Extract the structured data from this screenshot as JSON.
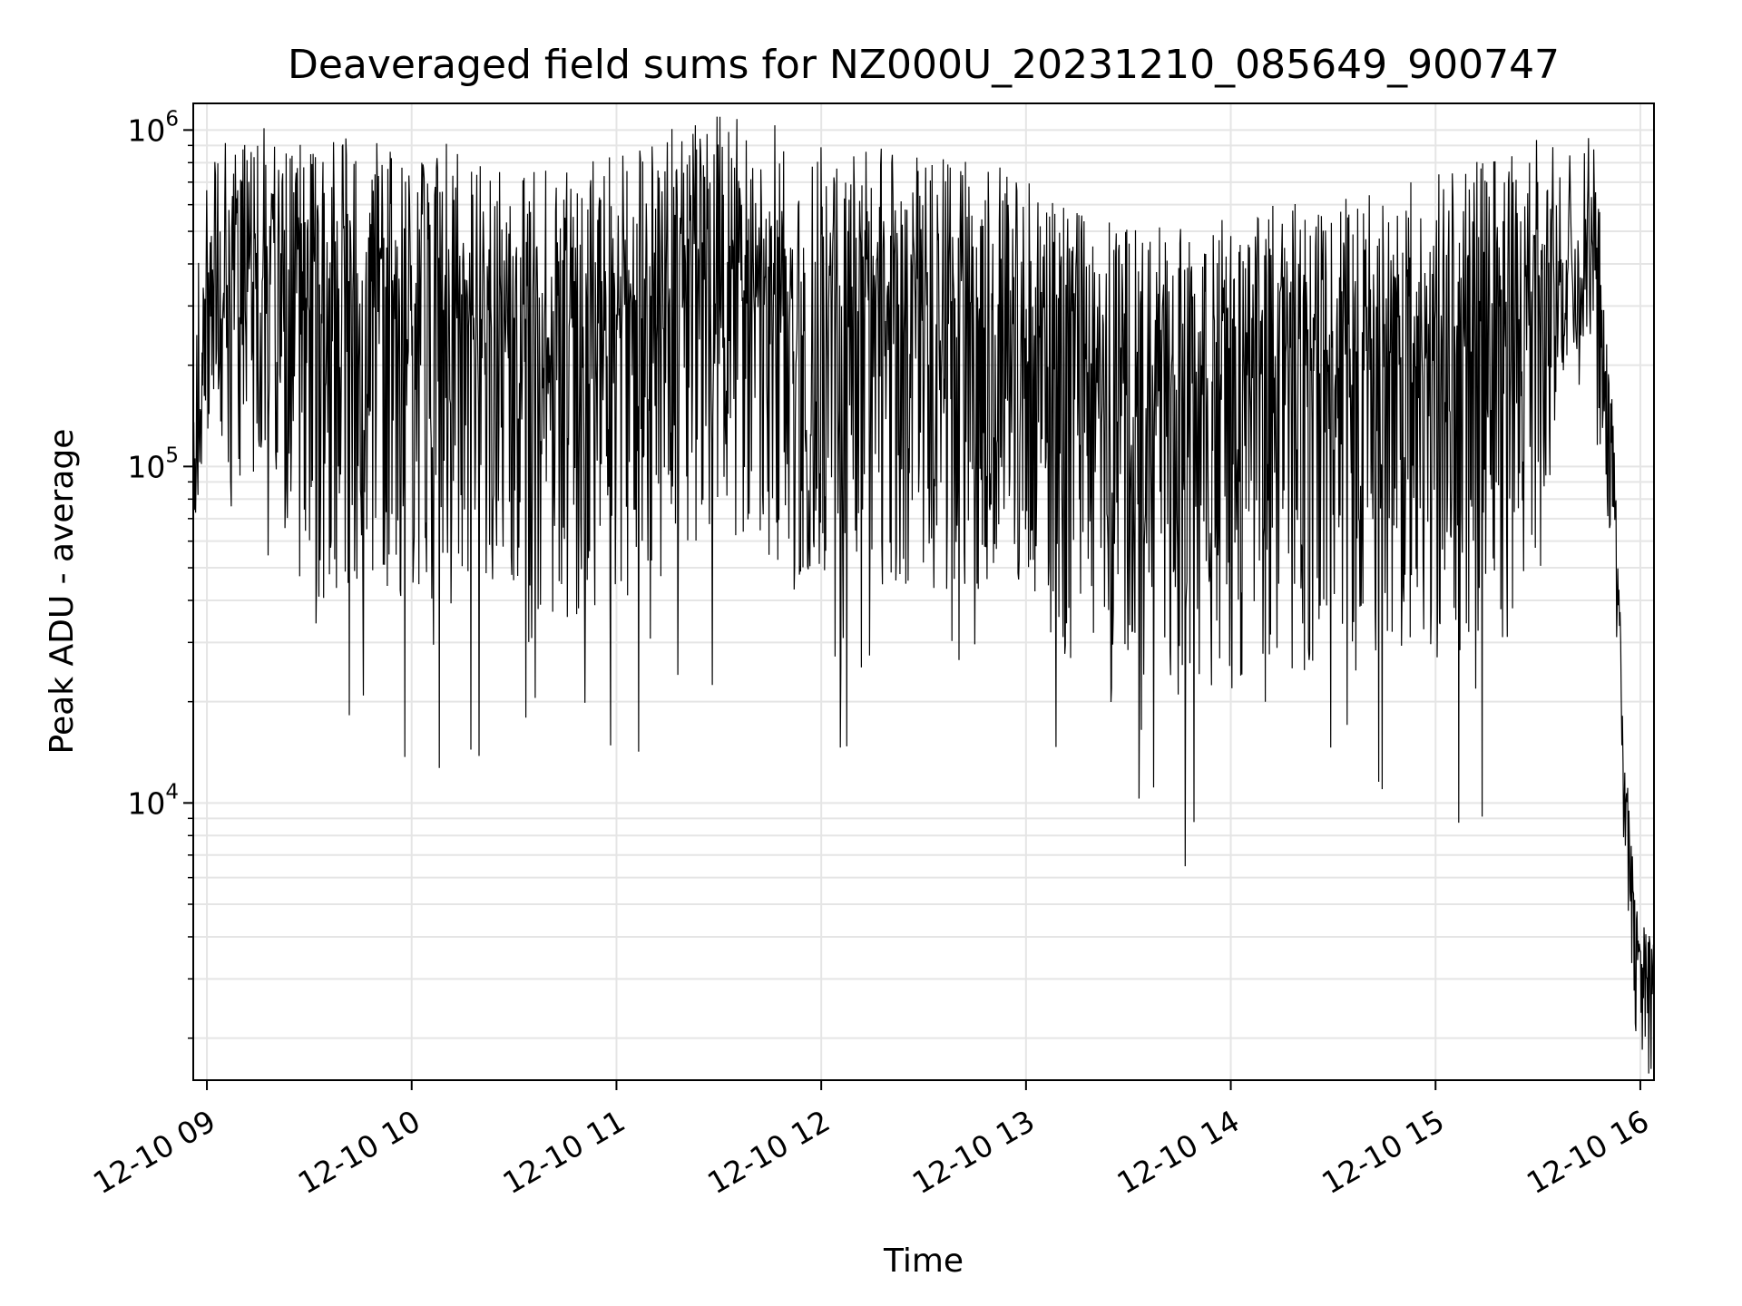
{
  "chart_data": {
    "type": "line",
    "title": "Deaveraged field sums for NZ000U_20231210_085649_900747",
    "xlabel": "Time",
    "ylabel": "Peak ADU - average",
    "xlim": [
      "2023-12-10 08:56",
      "2023-12-10 16:04"
    ],
    "ylim": [
      1500,
      1200000
    ],
    "y_scale": "log",
    "grid": true,
    "line_color": "#000000",
    "grid_color": "#e5e5e5",
    "x_ticks": [
      {
        "value": "2023-12-10 09:00",
        "label": "12-10 09"
      },
      {
        "value": "2023-12-10 10:00",
        "label": "12-10 10"
      },
      {
        "value": "2023-12-10 11:00",
        "label": "12-10 11"
      },
      {
        "value": "2023-12-10 12:00",
        "label": "12-10 12"
      },
      {
        "value": "2023-12-10 13:00",
        "label": "12-10 13"
      },
      {
        "value": "2023-12-10 14:00",
        "label": "12-10 14"
      },
      {
        "value": "2023-12-10 15:00",
        "label": "12-10 15"
      },
      {
        "value": "2023-12-10 16:00",
        "label": "12-10 16"
      }
    ],
    "y_ticks": [
      {
        "value": 10000,
        "base": "10",
        "exp": "4"
      },
      {
        "value": 100000,
        "base": "10",
        "exp": "5"
      },
      {
        "value": 1000000,
        "base": "10",
        "exp": "6"
      }
    ],
    "series": [
      {
        "points": [
          [
            "2023-12-10 08:56",
            70000
          ],
          [
            "2023-12-10 08:58",
            160000
          ],
          [
            "2023-12-10 09:00",
            230000
          ],
          [
            "2023-12-10 09:05",
            300000
          ],
          [
            "2023-12-10 09:10",
            280000
          ],
          [
            "2023-12-10 09:15",
            350000
          ],
          [
            "2023-12-10 09:20",
            300000
          ],
          [
            "2023-12-10 09:30",
            280000
          ],
          [
            "2023-12-10 09:40",
            300000
          ],
          [
            "2023-12-10 09:50",
            320000
          ],
          [
            "2023-12-10 10:00",
            300000
          ],
          [
            "2023-12-10 10:15",
            280000
          ],
          [
            "2023-12-10 10:30",
            230000
          ],
          [
            "2023-12-10 10:45",
            250000
          ],
          [
            "2023-12-10 11:00",
            280000
          ],
          [
            "2023-12-10 11:15",
            320000
          ],
          [
            "2023-12-10 11:30",
            350000
          ],
          [
            "2023-12-10 11:45",
            330000
          ],
          [
            "2023-12-10 12:00",
            300000
          ],
          [
            "2023-12-10 12:15",
            280000
          ],
          [
            "2023-12-10 12:30",
            260000
          ],
          [
            "2023-12-10 12:45",
            260000
          ],
          [
            "2023-12-10 13:00",
            230000
          ],
          [
            "2023-12-10 13:15",
            180000
          ],
          [
            "2023-12-10 13:30",
            160000
          ],
          [
            "2023-12-10 13:45",
            170000
          ],
          [
            "2023-12-10 14:00",
            180000
          ],
          [
            "2023-12-10 14:15",
            190000
          ],
          [
            "2023-12-10 14:30",
            200000
          ],
          [
            "2023-12-10 14:45",
            210000
          ],
          [
            "2023-12-10 15:00",
            230000
          ],
          [
            "2023-12-10 15:15",
            260000
          ],
          [
            "2023-12-10 15:30",
            300000
          ],
          [
            "2023-12-10 15:36",
            350000
          ],
          [
            "2023-12-10 15:40",
            400000
          ],
          [
            "2023-12-10 15:45",
            450000
          ],
          [
            "2023-12-10 15:48",
            280000
          ],
          [
            "2023-12-10 15:50",
            170000
          ],
          [
            "2023-12-10 15:52",
            100000
          ],
          [
            "2023-12-10 15:54",
            30000
          ],
          [
            "2023-12-10 15:55",
            12000
          ],
          [
            "2023-12-10 15:56",
            10000
          ],
          [
            "2023-12-10 15:57",
            7000
          ],
          [
            "2023-12-10 15:58",
            4500
          ],
          [
            "2023-12-10 15:59",
            4000
          ],
          [
            "2023-12-10 16:00",
            3000
          ],
          [
            "2023-12-10 16:01",
            3200
          ],
          [
            "2023-12-10 16:02",
            3000
          ],
          [
            "2023-12-10 16:04",
            3200
          ]
        ],
        "noise_envelope": [
          [
            "2023-12-10 08:56",
            0.15,
            1.3
          ],
          [
            "2023-12-10 09:10",
            0.55,
            1.7
          ],
          [
            "2023-12-10 09:30",
            0.88,
            2.0
          ],
          [
            "2023-12-10 12:30",
            0.82,
            2.0
          ],
          [
            "2023-12-10 13:00",
            0.72,
            1.85
          ],
          [
            "2023-12-10 13:15",
            0.9,
            2.0
          ],
          [
            "2023-12-10 15:30",
            0.95,
            2.0
          ],
          [
            "2023-12-10 15:36",
            0.3,
            1.1
          ],
          [
            "2023-12-10 15:46",
            0.25,
            1.1
          ],
          [
            "2023-12-10 15:50",
            0.4,
            0.5
          ],
          [
            "2023-12-10 15:55",
            0.2,
            0.25
          ],
          [
            "2023-12-10 15:58",
            0.3,
            0.35
          ],
          [
            "2023-12-10 16:04",
            0.3,
            0.35
          ]
        ],
        "sample_count": 2500
      }
    ]
  }
}
